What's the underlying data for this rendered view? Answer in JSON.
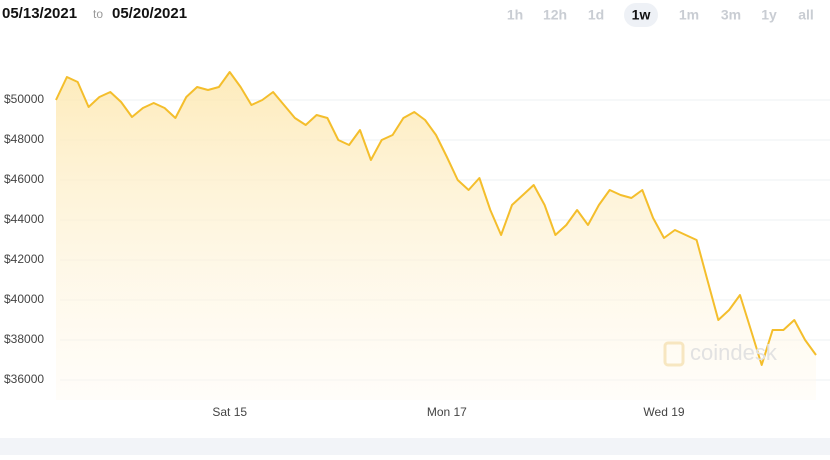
{
  "header": {
    "from": "05/13/2021",
    "joiner": "to",
    "to": "05/20/2021"
  },
  "ranges": [
    "1h",
    "12h",
    "1d",
    "1w",
    "1m",
    "3m",
    "1y",
    "all"
  ],
  "selected_range": "1w",
  "watermark": "coindesk",
  "chart_data": {
    "type": "area",
    "color": "#f4be2c",
    "categories": [
      null,
      null,
      null,
      null,
      null,
      null,
      null,
      null,
      null,
      null,
      null,
      null,
      null,
      null,
      null,
      null,
      "Sat 15",
      null,
      null,
      null,
      null,
      null,
      null,
      null,
      null,
      null,
      null,
      null,
      null,
      null,
      null,
      null,
      null,
      null,
      null,
      null,
      "Mon 17",
      null,
      null,
      null,
      null,
      null,
      null,
      null,
      null,
      null,
      null,
      null,
      null,
      null,
      null,
      null,
      null,
      null,
      null,
      null,
      "Wed 19",
      null,
      null,
      null,
      null,
      null,
      null,
      null,
      null,
      null,
      null,
      null,
      null,
      null,
      null
    ],
    "values": [
      50000,
      51150,
      50900,
      49650,
      50150,
      50400,
      49900,
      49150,
      49600,
      49850,
      49600,
      49100,
      50150,
      50650,
      50500,
      50650,
      51400,
      50650,
      49750,
      50000,
      50400,
      49750,
      49100,
      48750,
      49250,
      49100,
      48000,
      47750,
      48500,
      47000,
      48000,
      48250,
      49100,
      49400,
      49000,
      48250,
      47150,
      46000,
      45500,
      46100,
      44500,
      43250,
      44750,
      45250,
      45750,
      44750,
      43250,
      43750,
      44500,
      43750,
      44750,
      45500,
      45250,
      45100,
      45500,
      44100,
      43100,
      43500,
      43250,
      43000,
      41000,
      39000,
      39500,
      40250,
      38500,
      36750,
      38500,
      38500,
      39000,
      38000,
      37250
    ],
    "ylim": [
      35000,
      52000
    ],
    "yticks": [
      {
        "value": 36000,
        "label": "$36000"
      },
      {
        "value": 38000,
        "label": "$38000"
      },
      {
        "value": 40000,
        "label": "$40000"
      },
      {
        "value": 42000,
        "label": "$42000"
      },
      {
        "value": 44000,
        "label": "$44000"
      },
      {
        "value": 46000,
        "label": "$46000"
      },
      {
        "value": 48000,
        "label": "$48000"
      },
      {
        "value": 50000,
        "label": "$50000"
      }
    ],
    "grid": true
  }
}
